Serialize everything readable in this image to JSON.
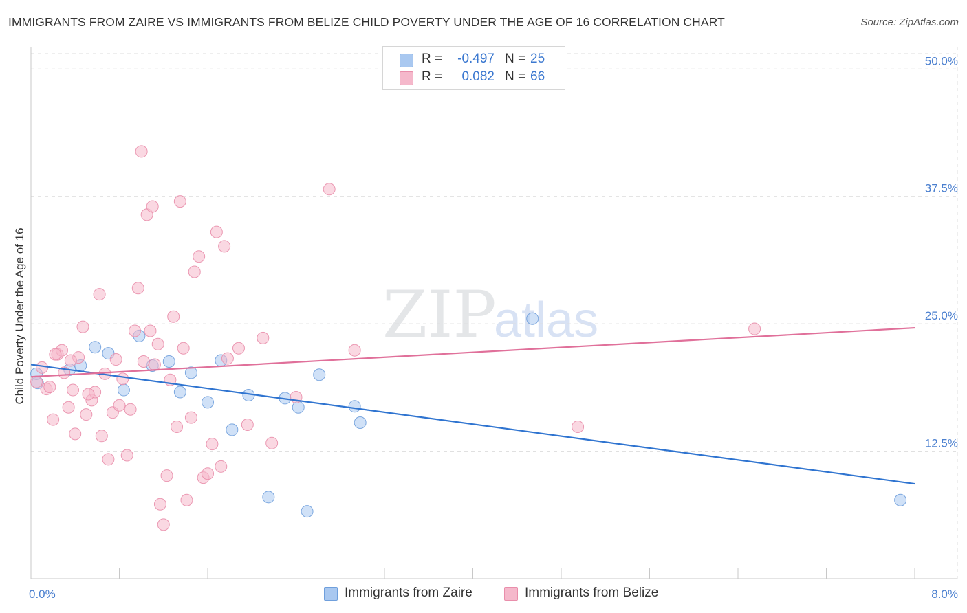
{
  "header": {
    "title": "IMMIGRANTS FROM ZAIRE VS IMMIGRANTS FROM BELIZE CHILD POVERTY UNDER THE AGE OF 16 CORRELATION CHART",
    "source": "Source: ZipAtlas.com"
  },
  "watermark": {
    "part1": "ZIP",
    "part2": "atlas"
  },
  "legend_top": {
    "rows": [
      {
        "r_label": "R =",
        "r_value": "-0.497",
        "n_label": "N =",
        "n_value": "25"
      },
      {
        "r_label": "R =",
        "r_value": "0.082",
        "n_label": "N =",
        "n_value": "66"
      }
    ]
  },
  "legend_bottom": {
    "items": [
      {
        "label": "Immigrants from Zaire"
      },
      {
        "label": "Immigrants from Belize"
      }
    ]
  },
  "colors": {
    "zaire_fill": "#a9c8f0",
    "zaire_stroke": "#6f9fdc",
    "zaire_line": "#2f74d0",
    "belize_fill": "#f5b8cb",
    "belize_stroke": "#e98eab",
    "belize_line": "#e0709a",
    "axis_text": "#4a7fcf",
    "grid": "#dcdcdc"
  },
  "chart_data": {
    "type": "scatter",
    "title": "IMMIGRANTS FROM ZAIRE VS IMMIGRANTS FROM BELIZE CHILD POVERTY UNDER THE AGE OF 16 CORRELATION CHART",
    "xlabel": "",
    "ylabel": "Child Poverty Under the Age of 16",
    "xlim": [
      0,
      8
    ],
    "ylim": [
      0,
      51.5
    ],
    "x_tick_labels": [
      "0.0%",
      "8.0%"
    ],
    "y_ticks": [
      {
        "value": 12.5,
        "label": "12.5%"
      },
      {
        "value": 25.0,
        "label": "25.0%"
      },
      {
        "value": 37.5,
        "label": "37.5%"
      },
      {
        "value": 50.0,
        "label": "50.0%"
      }
    ],
    "grid": true,
    "series": [
      {
        "name": "Immigrants from Zaire",
        "r": -0.497,
        "n": 25,
        "trend": {
          "x": [
            0,
            8
          ],
          "y": [
            21.0,
            9.3
          ]
        },
        "points": [
          {
            "x": 0.06,
            "y": 19.2
          },
          {
            "x": 0.35,
            "y": 20.5
          },
          {
            "x": 0.45,
            "y": 20.9
          },
          {
            "x": 0.58,
            "y": 22.7
          },
          {
            "x": 0.7,
            "y": 22.1
          },
          {
            "x": 0.84,
            "y": 18.5
          },
          {
            "x": 0.98,
            "y": 23.8
          },
          {
            "x": 1.1,
            "y": 20.9
          },
          {
            "x": 1.25,
            "y": 21.3
          },
          {
            "x": 1.35,
            "y": 18.3
          },
          {
            "x": 1.45,
            "y": 20.2
          },
          {
            "x": 1.6,
            "y": 17.3
          },
          {
            "x": 1.72,
            "y": 21.4
          },
          {
            "x": 1.82,
            "y": 14.6
          },
          {
            "x": 1.97,
            "y": 18.0
          },
          {
            "x": 2.15,
            "y": 8.0
          },
          {
            "x": 2.3,
            "y": 17.7
          },
          {
            "x": 2.42,
            "y": 16.8
          },
          {
            "x": 2.5,
            "y": 6.6
          },
          {
            "x": 2.61,
            "y": 20.0
          },
          {
            "x": 2.93,
            "y": 16.9
          },
          {
            "x": 2.98,
            "y": 15.3
          },
          {
            "x": 4.54,
            "y": 25.5
          },
          {
            "x": 7.87,
            "y": 7.7
          },
          {
            "x": 0.05,
            "y": 20.1
          }
        ]
      },
      {
        "name": "Immigrants from Belize",
        "r": 0.082,
        "n": 66,
        "trend": {
          "x": [
            0,
            8
          ],
          "y": [
            19.8,
            24.6
          ]
        },
        "points": [
          {
            "x": 0.05,
            "y": 19.3
          },
          {
            "x": 0.1,
            "y": 20.7
          },
          {
            "x": 0.14,
            "y": 18.6
          },
          {
            "x": 0.17,
            "y": 18.8
          },
          {
            "x": 0.2,
            "y": 15.6
          },
          {
            "x": 0.24,
            "y": 22.0
          },
          {
            "x": 0.28,
            "y": 22.4
          },
          {
            "x": 0.3,
            "y": 20.2
          },
          {
            "x": 0.34,
            "y": 16.8
          },
          {
            "x": 0.38,
            "y": 18.5
          },
          {
            "x": 0.4,
            "y": 14.2
          },
          {
            "x": 0.43,
            "y": 21.7
          },
          {
            "x": 0.47,
            "y": 24.7
          },
          {
            "x": 0.5,
            "y": 16.1
          },
          {
            "x": 0.55,
            "y": 17.5
          },
          {
            "x": 0.58,
            "y": 18.3
          },
          {
            "x": 0.62,
            "y": 27.9
          },
          {
            "x": 0.64,
            "y": 14.0
          },
          {
            "x": 0.67,
            "y": 20.1
          },
          {
            "x": 0.7,
            "y": 11.7
          },
          {
            "x": 0.74,
            "y": 16.3
          },
          {
            "x": 0.77,
            "y": 21.5
          },
          {
            "x": 0.8,
            "y": 17.0
          },
          {
            "x": 0.83,
            "y": 19.6
          },
          {
            "x": 0.87,
            "y": 12.1
          },
          {
            "x": 0.9,
            "y": 16.6
          },
          {
            "x": 0.94,
            "y": 24.3
          },
          {
            "x": 0.97,
            "y": 28.5
          },
          {
            "x": 1.0,
            "y": 41.9
          },
          {
            "x": 1.02,
            "y": 21.3
          },
          {
            "x": 1.05,
            "y": 35.7
          },
          {
            "x": 1.08,
            "y": 24.3
          },
          {
            "x": 1.1,
            "y": 36.5
          },
          {
            "x": 1.12,
            "y": 21.0
          },
          {
            "x": 1.15,
            "y": 23.0
          },
          {
            "x": 1.17,
            "y": 7.3
          },
          {
            "x": 1.2,
            "y": 5.3
          },
          {
            "x": 1.23,
            "y": 10.1
          },
          {
            "x": 1.26,
            "y": 19.5
          },
          {
            "x": 1.29,
            "y": 25.7
          },
          {
            "x": 1.32,
            "y": 14.9
          },
          {
            "x": 1.35,
            "y": 37.0
          },
          {
            "x": 1.38,
            "y": 22.6
          },
          {
            "x": 1.41,
            "y": 7.7
          },
          {
            "x": 1.45,
            "y": 15.8
          },
          {
            "x": 1.48,
            "y": 30.1
          },
          {
            "x": 1.52,
            "y": 31.6
          },
          {
            "x": 1.56,
            "y": 9.9
          },
          {
            "x": 1.6,
            "y": 10.3
          },
          {
            "x": 1.64,
            "y": 13.2
          },
          {
            "x": 1.68,
            "y": 34.0
          },
          {
            "x": 1.72,
            "y": 11.0
          },
          {
            "x": 1.75,
            "y": 32.6
          },
          {
            "x": 1.78,
            "y": 21.6
          },
          {
            "x": 1.96,
            "y": 15.1
          },
          {
            "x": 2.1,
            "y": 23.6
          },
          {
            "x": 2.18,
            "y": 13.3
          },
          {
            "x": 2.4,
            "y": 17.8
          },
          {
            "x": 2.7,
            "y": 38.2
          },
          {
            "x": 2.93,
            "y": 22.4
          },
          {
            "x": 1.88,
            "y": 22.6
          },
          {
            "x": 0.52,
            "y": 18.1
          },
          {
            "x": 0.36,
            "y": 21.4
          },
          {
            "x": 0.22,
            "y": 22.0
          },
          {
            "x": 4.95,
            "y": 14.9
          },
          {
            "x": 6.55,
            "y": 24.5
          }
        ]
      }
    ]
  }
}
